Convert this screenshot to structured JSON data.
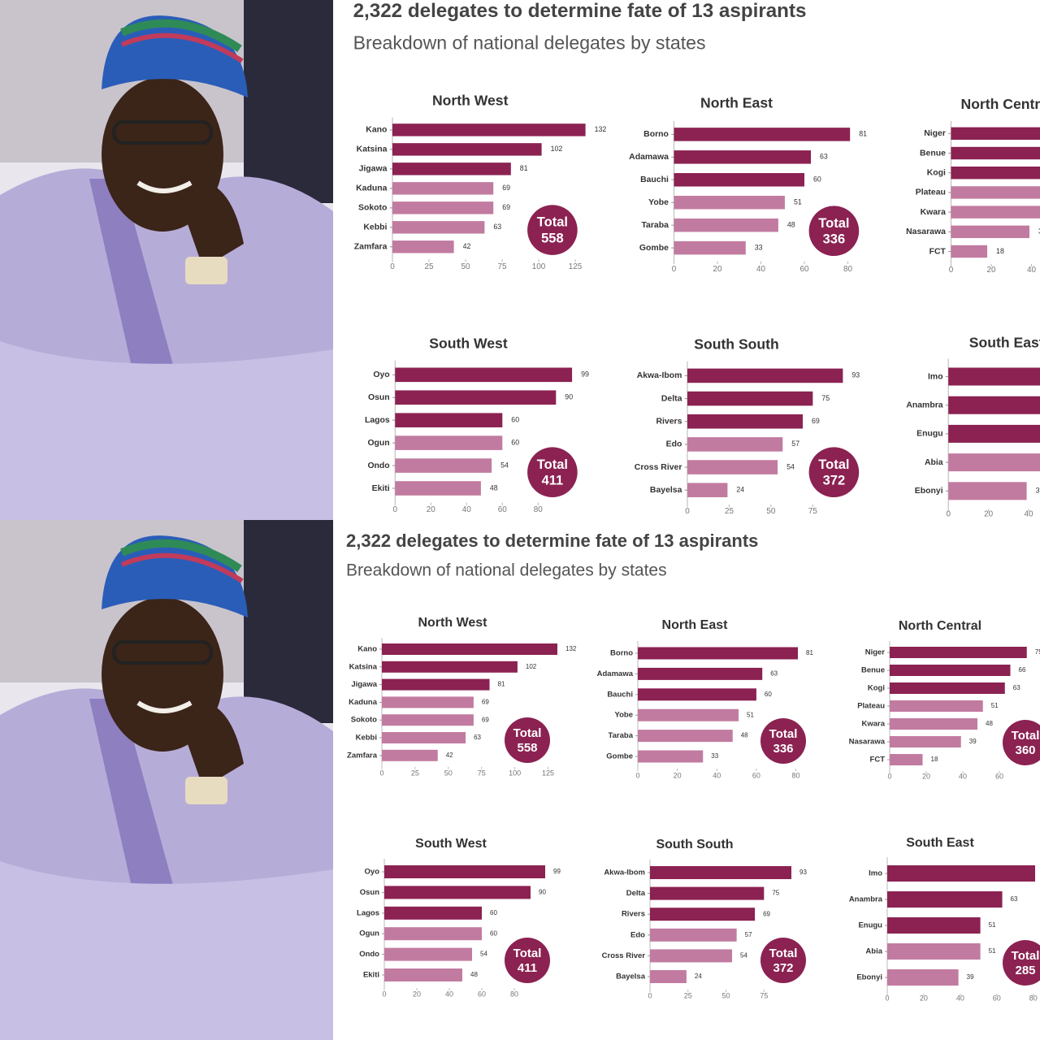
{
  "header": {
    "title": "2,322 delegates to determine fate of 13 aspirants",
    "subtitle": "Breakdown of national delegates by states"
  },
  "total_label": "Total",
  "chart_data": [
    {
      "type": "bar",
      "orientation": "horizontal",
      "title": "North West",
      "categories": [
        "Kano",
        "Katsina",
        "Jigawa",
        "Kaduna",
        "Sokoto",
        "Kebbi",
        "Zamfara"
      ],
      "values": [
        132,
        102,
        81,
        69,
        69,
        63,
        42
      ],
      "colors": [
        "#8b2252",
        "#8b2252",
        "#8b2252",
        "#c27ba0",
        "#c27ba0",
        "#c27ba0",
        "#c27ba0"
      ],
      "xlim": [
        0,
        132
      ],
      "xticks": [
        0,
        25,
        50,
        75,
        100,
        125
      ],
      "total": 558
    },
    {
      "type": "bar",
      "orientation": "horizontal",
      "title": "North East",
      "categories": [
        "Borno",
        "Adamawa",
        "Bauchi",
        "Yobe",
        "Taraba",
        "Gombe"
      ],
      "values": [
        81,
        63,
        60,
        51,
        48,
        33
      ],
      "colors": [
        "#8b2252",
        "#8b2252",
        "#8b2252",
        "#c27ba0",
        "#c27ba0",
        "#c27ba0"
      ],
      "xlim": [
        0,
        81
      ],
      "xticks": [
        0,
        20,
        40,
        60,
        80
      ],
      "total": 336
    },
    {
      "type": "bar",
      "orientation": "horizontal",
      "title": "North Central",
      "categories": [
        "Niger",
        "Benue",
        "Kogi",
        "Plateau",
        "Kwara",
        "Nasarawa",
        "FCT"
      ],
      "values": [
        75,
        66,
        63,
        51,
        48,
        39,
        18
      ],
      "colors": [
        "#8b2252",
        "#8b2252",
        "#8b2252",
        "#c27ba0",
        "#c27ba0",
        "#c27ba0",
        "#c27ba0"
      ],
      "xlim": [
        0,
        80
      ],
      "xticks": [
        0,
        20,
        40,
        60
      ],
      "total": 360
    },
    {
      "type": "bar",
      "orientation": "horizontal",
      "title": "South West",
      "categories": [
        "Oyo",
        "Osun",
        "Lagos",
        "Ogun",
        "Ondo",
        "Ekiti"
      ],
      "values": [
        99,
        90,
        60,
        60,
        54,
        48
      ],
      "colors": [
        "#8b2252",
        "#8b2252",
        "#8b2252",
        "#c27ba0",
        "#c27ba0",
        "#c27ba0"
      ],
      "xlim": [
        0,
        99
      ],
      "xticks": [
        0,
        20,
        40,
        60,
        80
      ],
      "total": 411
    },
    {
      "type": "bar",
      "orientation": "horizontal",
      "title": "South South",
      "categories": [
        "Akwa-Ibom",
        "Delta",
        "Rivers",
        "Edo",
        "Cross River",
        "Bayelsa"
      ],
      "values": [
        93,
        75,
        69,
        57,
        54,
        24
      ],
      "colors": [
        "#8b2252",
        "#8b2252",
        "#8b2252",
        "#c27ba0",
        "#c27ba0",
        "#c27ba0"
      ],
      "xlim": [
        0,
        93
      ],
      "xticks": [
        0,
        25,
        50,
        75
      ],
      "total": 372
    },
    {
      "type": "bar",
      "orientation": "horizontal",
      "title": "South East",
      "categories": [
        "Imo",
        "Anambra",
        "Enugu",
        "Abia",
        "Ebonyi"
      ],
      "values": [
        81,
        63,
        51,
        51,
        39
      ],
      "colors": [
        "#8b2252",
        "#8b2252",
        "#8b2252",
        "#c27ba0",
        "#c27ba0"
      ],
      "xlim": [
        0,
        81
      ],
      "xticks": [
        0,
        20,
        40,
        60,
        80
      ],
      "total": 285
    }
  ]
}
